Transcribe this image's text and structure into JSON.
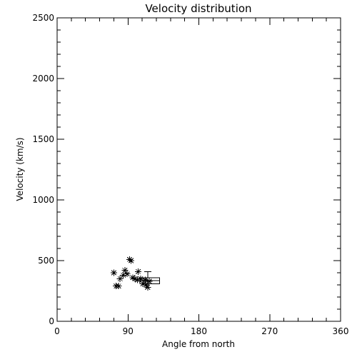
{
  "chart_data": {
    "type": "scatter",
    "title": "Velocity distribution",
    "xlabel": "Angle from north",
    "ylabel": "Velocity (km/s)",
    "xlim": [
      0,
      360
    ],
    "ylim": [
      0,
      2500
    ],
    "xticks": [
      0,
      90,
      180,
      270,
      360
    ],
    "xtick_labels": [
      "0",
      "90",
      "180",
      "270",
      "360"
    ],
    "yticks": [
      0,
      500,
      1000,
      1500,
      2000,
      2500
    ],
    "ytick_labels": [
      "0",
      "500",
      "1000",
      "1500",
      "2000",
      "2500"
    ],
    "grid": false,
    "marker": "asterisk",
    "colors": {
      "foreground": "#000000",
      "background": "#ffffff"
    },
    "points": [
      {
        "x": 72,
        "y": 400
      },
      {
        "x": 75,
        "y": 290
      },
      {
        "x": 78,
        "y": 290
      },
      {
        "x": 80,
        "y": 350
      },
      {
        "x": 84,
        "y": 380
      },
      {
        "x": 86,
        "y": 420
      },
      {
        "x": 89,
        "y": 390
      },
      {
        "x": 92,
        "y": 510
      },
      {
        "x": 94,
        "y": 500
      },
      {
        "x": 96,
        "y": 360
      },
      {
        "x": 99,
        "y": 350
      },
      {
        "x": 102,
        "y": 340
      },
      {
        "x": 103,
        "y": 410
      },
      {
        "x": 106,
        "y": 350
      },
      {
        "x": 109,
        "y": 310
      },
      {
        "x": 112,
        "y": 340
      },
      {
        "x": 113,
        "y": 300
      },
      {
        "x": 115,
        "y": 280
      },
      {
        "x": 117,
        "y": 330
      }
    ],
    "boxplot": {
      "x_from": 105,
      "x_to": 130,
      "whisker_x": 115,
      "q1": 310,
      "median": 335,
      "q3": 360,
      "whisker_high": 410
    }
  }
}
